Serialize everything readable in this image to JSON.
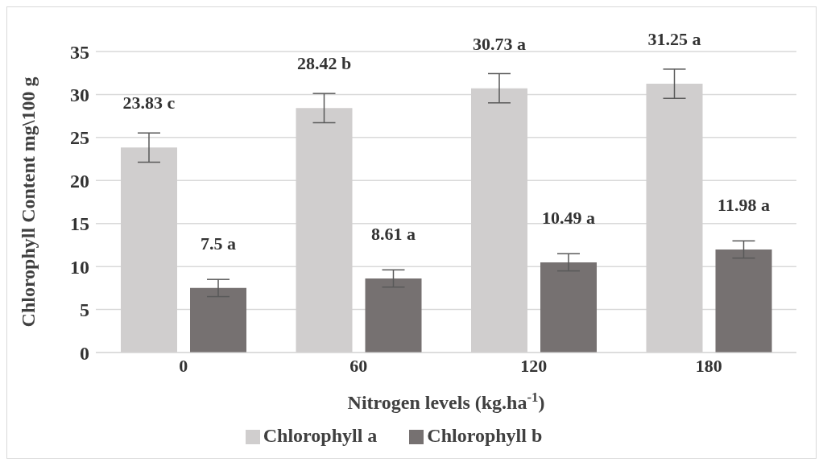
{
  "chart_data": {
    "type": "bar",
    "xlabel": "Nitrogen levels (kg.ha$^{-1}$)",
    "ylabel": "Chlorophyll Content mg\\100 g",
    "categories": [
      "0",
      "60",
      "120",
      "180"
    ],
    "series": [
      {
        "name": "Chlorophyll a",
        "color": "#d0cece",
        "values": [
          23.83,
          28.42,
          30.73,
          31.25
        ],
        "errors": [
          1.7,
          1.7,
          1.7,
          1.7
        ],
        "value_labels": [
          "23.83 c",
          "28.42 b",
          "30.73 a",
          "31.25 a"
        ]
      },
      {
        "name": "Chlorophyll b",
        "color": "#767171",
        "values": [
          7.5,
          8.61,
          10.49,
          11.98
        ],
        "errors": [
          1.0,
          1.0,
          1.0,
          1.0
        ],
        "value_labels": [
          "7.5 a",
          "8.61 a",
          "10.49 a",
          "11.98 a"
        ]
      }
    ],
    "ylim": [
      0,
      35
    ],
    "yticks": [
      0,
      5,
      10,
      15,
      20,
      25,
      30,
      35
    ],
    "grid": "y",
    "legend": "bottom"
  }
}
